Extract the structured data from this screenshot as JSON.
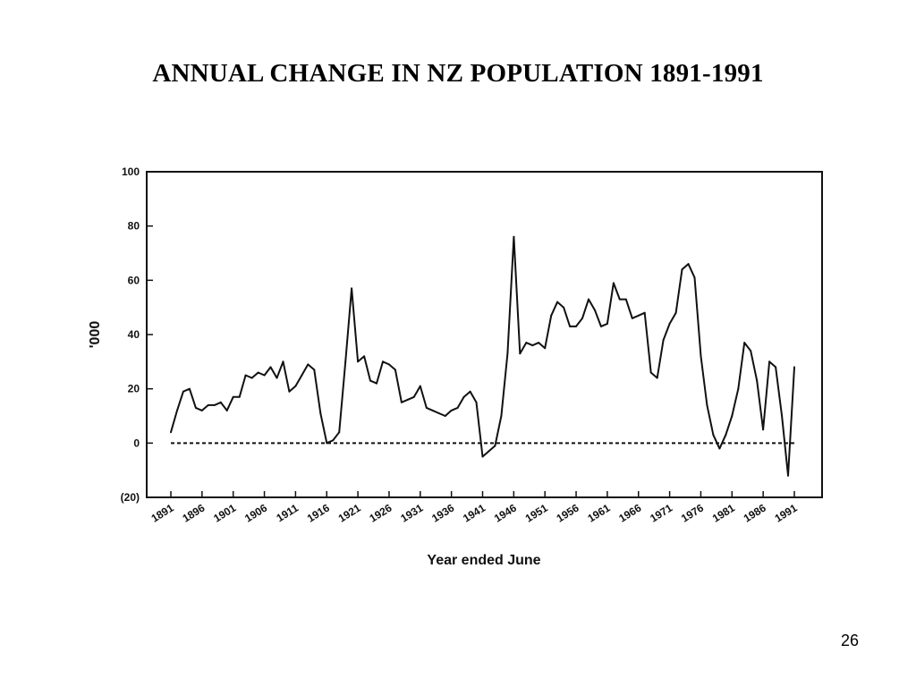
{
  "slide": {
    "title": "ANNUAL CHANGE IN NZ POPULATION 1891-1991",
    "page_number": "26"
  },
  "chart_data": {
    "type": "line",
    "title": "ANNUAL CHANGE IN NZ POPULATION 1891-1991",
    "xlabel": "Year ended June",
    "ylabel": "'000",
    "xlim": [
      1891,
      1991
    ],
    "ylim": [
      -20,
      100
    ],
    "y_ticks": [
      100,
      80,
      60,
      40,
      20,
      0,
      -20
    ],
    "y_tick_labels": [
      "100",
      "80",
      "60",
      "40",
      "20",
      "0",
      "(20)"
    ],
    "x_tick_labels": [
      "1891",
      "1896",
      "1901",
      "1906",
      "1911",
      "1916",
      "1921",
      "1926",
      "1931",
      "1936",
      "1941",
      "1946",
      "1951",
      "1956",
      "1961",
      "1966",
      "1971",
      "1976",
      "1981",
      "1986",
      "1991"
    ],
    "grid": false,
    "reference_line": {
      "y": 0,
      "style": "dashed"
    },
    "series": [
      {
        "x": [
          1891,
          1892,
          1893,
          1894,
          1895,
          1896,
          1897,
          1898,
          1899,
          1900,
          1901,
          1902,
          1903,
          1904,
          1905,
          1906,
          1907,
          1908,
          1909,
          1910,
          1911,
          1912,
          1913,
          1914,
          1915,
          1916,
          1917,
          1918,
          1919,
          1920,
          1921,
          1922,
          1923,
          1924,
          1925,
          1926,
          1927,
          1928,
          1929,
          1930,
          1931,
          1932,
          1933,
          1934,
          1935,
          1936,
          1937,
          1938,
          1939,
          1940,
          1941,
          1942,
          1943,
          1944,
          1945,
          1946,
          1947,
          1948,
          1949,
          1950,
          1951,
          1952,
          1953,
          1954,
          1955,
          1956,
          1957,
          1958,
          1959,
          1960,
          1961,
          1962,
          1963,
          1964,
          1965,
          1966,
          1967,
          1968,
          1969,
          1970,
          1971,
          1972,
          1973,
          1974,
          1975,
          1976,
          1977,
          1978,
          1979,
          1980,
          1981,
          1982,
          1983,
          1984,
          1985,
          1986,
          1987,
          1988,
          1989,
          1990,
          1991
        ],
        "values": [
          4,
          12,
          19,
          20,
          13,
          12,
          14,
          14,
          15,
          12,
          17,
          17,
          25,
          24,
          26,
          25,
          28,
          24,
          30,
          19,
          21,
          25,
          29,
          27,
          11,
          0,
          1,
          4,
          30,
          57,
          30,
          32,
          23,
          22,
          30,
          29,
          27,
          15,
          16,
          17,
          21,
          13,
          12,
          11,
          10,
          12,
          13,
          17,
          19,
          15,
          -5,
          -3,
          -1,
          10,
          33,
          76,
          33,
          37,
          36,
          37,
          35,
          47,
          52,
          50,
          43,
          43,
          46,
          53,
          49,
          43,
          44,
          59,
          53,
          53,
          46,
          47,
          48,
          26,
          24,
          38,
          44,
          48,
          64,
          66,
          61,
          32,
          14,
          3,
          -2,
          3,
          10,
          20,
          37,
          34,
          23,
          5,
          30,
          28,
          10,
          -12,
          28
        ]
      }
    ]
  }
}
